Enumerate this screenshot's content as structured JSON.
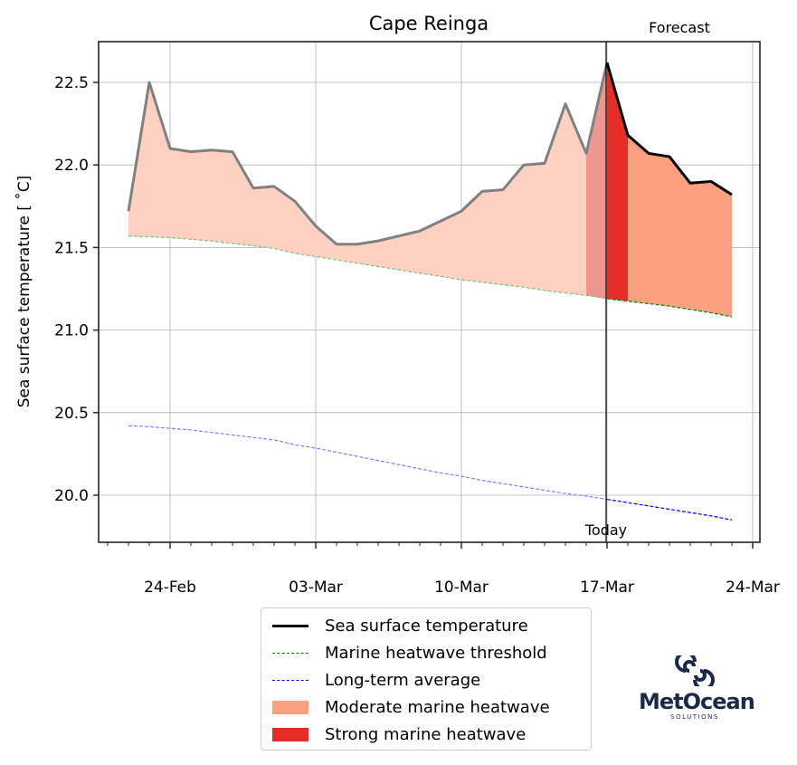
{
  "chart_data": {
    "type": "line",
    "title": "Cape Reinga",
    "xlabel": "",
    "ylabel": "Sea surface temperature [ ˚C]",
    "ylim": [
      19.73,
      22.75
    ],
    "yticks": [
      "20.0",
      "20.5",
      "21.0",
      "21.5",
      "22.0",
      "22.5"
    ],
    "xticks": [
      "24-Feb",
      "03-Mar",
      "10-Mar",
      "17-Mar",
      "24-Mar"
    ],
    "grid": true,
    "x": [
      "22-Feb",
      "23-Feb",
      "24-Feb",
      "25-Feb",
      "26-Feb",
      "27-Feb",
      "28-Feb",
      "01-Mar",
      "02-Mar",
      "03-Mar",
      "04-Mar",
      "05-Mar",
      "06-Mar",
      "07-Mar",
      "08-Mar",
      "09-Mar",
      "10-Mar",
      "11-Mar",
      "12-Mar",
      "13-Mar",
      "14-Mar",
      "15-Mar",
      "16-Mar",
      "17-Mar",
      "18-Mar",
      "19-Mar",
      "20-Mar",
      "21-Mar",
      "22-Mar",
      "23-Mar"
    ],
    "series": [
      {
        "name": "Sea surface temperature",
        "values": [
          21.72,
          22.5,
          22.1,
          22.08,
          22.09,
          22.08,
          21.86,
          21.87,
          21.78,
          21.63,
          21.52,
          21.52,
          21.54,
          21.57,
          21.6,
          21.66,
          21.72,
          21.84,
          21.85,
          22.0,
          22.01,
          22.37,
          22.07,
          22.62,
          22.18,
          22.07,
          22.05,
          21.89,
          21.9,
          21.82
        ]
      },
      {
        "name": "Marine heatwave threshold",
        "values": [
          21.57,
          21.565,
          21.56,
          21.55,
          21.54,
          21.525,
          21.51,
          21.495,
          21.465,
          21.445,
          21.425,
          21.405,
          21.385,
          21.365,
          21.345,
          21.325,
          21.305,
          21.29,
          21.275,
          21.26,
          21.24,
          21.225,
          21.21,
          21.19,
          21.175,
          21.16,
          21.145,
          21.125,
          21.105,
          21.08
        ]
      },
      {
        "name": "Long-term average",
        "values": [
          20.42,
          20.415,
          20.405,
          20.395,
          20.38,
          20.365,
          20.35,
          20.335,
          20.305,
          20.285,
          20.26,
          20.235,
          20.21,
          20.185,
          20.16,
          20.135,
          20.115,
          20.09,
          20.07,
          20.05,
          20.03,
          20.01,
          19.995,
          19.975,
          19.955,
          19.935,
          19.915,
          19.895,
          19.875,
          19.85
        ]
      }
    ],
    "heatwave_categories": {
      "moderate_days": [
        "22-Feb to 15-Mar (past, faded)",
        "16-Mar (past)",
        "18-Mar to 23-Mar (forecast)"
      ],
      "strong_days": [
        "17-Mar"
      ]
    },
    "annotations": [
      {
        "text": "Today",
        "x": "17-Mar"
      },
      {
        "text": "Forecast",
        "position": "top-right"
      }
    ],
    "legend_position": "below"
  },
  "legend": {
    "items": [
      {
        "label": "Sea surface temperature",
        "kind": "line",
        "color": "#000000"
      },
      {
        "label": "Marine heatwave threshold",
        "kind": "dashed",
        "color": "#008000"
      },
      {
        "label": "Long-term average",
        "kind": "dashed",
        "color": "#0000ff"
      },
      {
        "label": "Moderate marine heatwave",
        "kind": "patch",
        "color": "#fca082"
      },
      {
        "label": "Strong marine heatwave",
        "kind": "patch",
        "color": "#e32f27"
      }
    ]
  },
  "logo": {
    "name": "MetOcean",
    "sub": "SOLUTIONS"
  },
  "colors": {
    "past_fill": "#fdd0c2",
    "past_strong_fill": "#f09691",
    "moderate": "#fca082",
    "strong": "#e32f27",
    "past_line": "#808080",
    "forecast_line": "#000000"
  }
}
